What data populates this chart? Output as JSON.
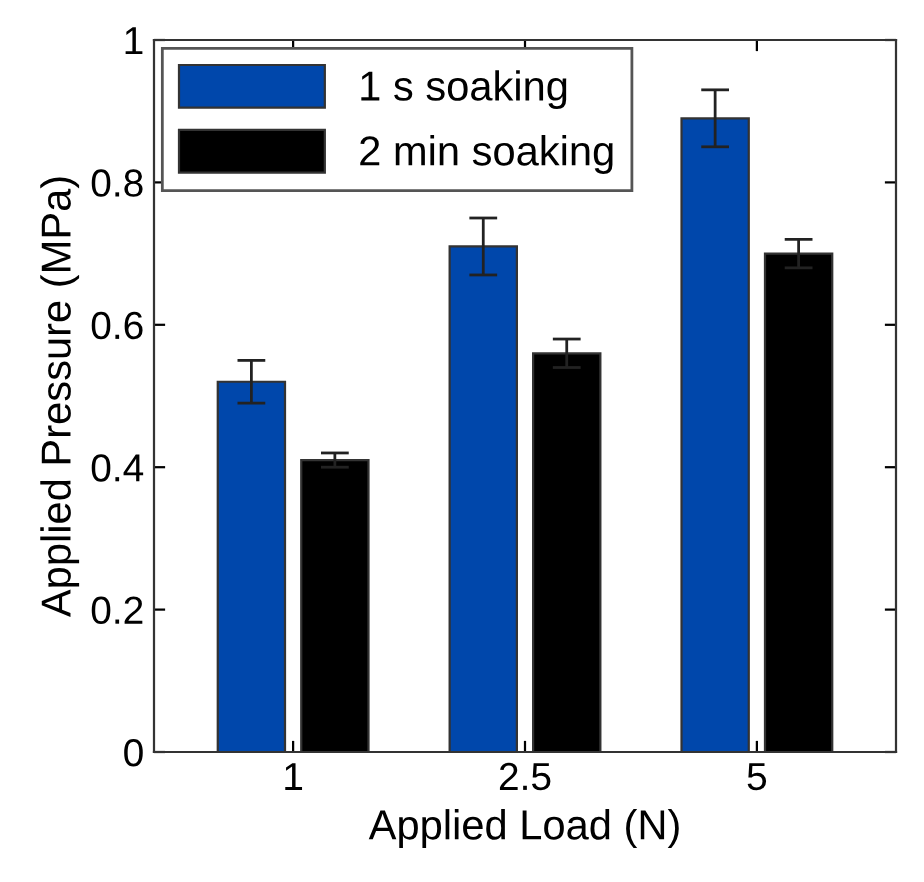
{
  "chart_data": {
    "type": "bar",
    "xlabel": "Applied Load (N)",
    "ylabel": "Applied Pressure (MPa)",
    "categories": [
      "1",
      "2.5",
      "5"
    ],
    "series": [
      {
        "name": "1 s soaking",
        "color": "#0047ab",
        "values": [
          0.52,
          0.71,
          0.89
        ],
        "errors": [
          0.03,
          0.04,
          0.04
        ]
      },
      {
        "name": "2 min soaking",
        "color": "#000000",
        "values": [
          0.41,
          0.56,
          0.7
        ],
        "errors": [
          0.01,
          0.02,
          0.02
        ]
      }
    ],
    "ylim": [
      0,
      1
    ],
    "yticks": [
      0,
      0.2,
      0.4,
      0.6,
      0.8,
      1
    ],
    "grid": false,
    "legend": "top left"
  }
}
